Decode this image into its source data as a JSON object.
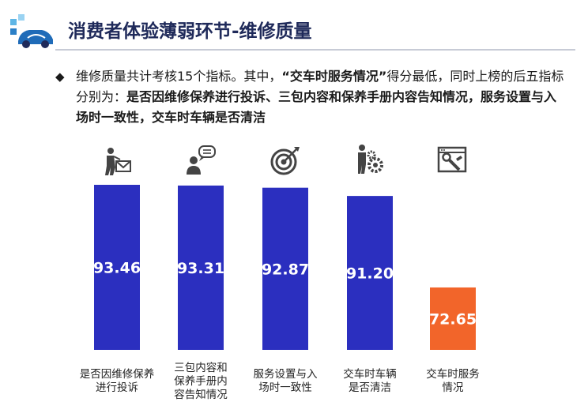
{
  "header": {
    "title": "消费者体验薄弱环节-维修质量"
  },
  "summary": {
    "bullet": "◆",
    "intro": "维修质量共计考核15个指标。其中，",
    "lowest": "“交车时服务情况”",
    "mid": "得分最低，同时上榜的后五指标分别为：",
    "items": "是否因维修保养进行投诉、三包内容和保养手册内容告知情况，服务设置与入场时一致性，交车时车辆是否清洁"
  },
  "chart_data": {
    "type": "bar",
    "categories": [
      "是否因维修保养进行投诉",
      "三包内容和保养手册内容告知情况",
      "服务设置与入场时一致性",
      "交车时车辆是否清洁",
      "交车时服务情况"
    ],
    "category_lines": [
      [
        "是否因维修保养",
        "进行投诉"
      ],
      [
        "三包内容和",
        "保养手册内",
        "容告知情况"
      ],
      [
        "服务设置与入",
        "场时一致性"
      ],
      [
        "交车时车辆",
        "是否清洁"
      ],
      [
        "交车时服务",
        "情况"
      ]
    ],
    "values": [
      93.46,
      93.31,
      92.87,
      91.2,
      72.65
    ],
    "value_labels": [
      "93.46",
      "93.31",
      "92.87",
      "91.20",
      "72.65"
    ],
    "colors": [
      "#2b2fbf",
      "#2b2fbf",
      "#2b2fbf",
      "#2b2fbf",
      "#f2652a"
    ],
    "icons": [
      "worker-envelope-icon",
      "person-speech-icon",
      "target-icon",
      "person-gear-icon",
      "browser-wrench-icon"
    ],
    "ylim": [
      60,
      100
    ],
    "grid": false
  }
}
